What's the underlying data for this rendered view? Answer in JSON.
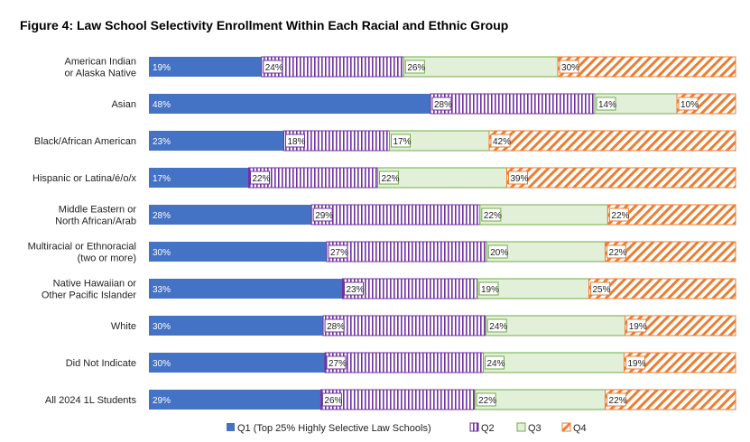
{
  "chart_data": {
    "type": "bar",
    "orientation": "horizontal",
    "stacked": "percent",
    "title": "Figure 4: Law School Selectivity Enrollment Within Each Racial and Ethnic Group",
    "categories": [
      [
        "American Indian",
        "or Alaska Native"
      ],
      [
        "Asian"
      ],
      [
        "Black/African American"
      ],
      [
        "Hispanic or Latina/é/o/x"
      ],
      [
        "Middle Eastern or",
        "North African/Arab"
      ],
      [
        "Multiracial or Ethnoracial",
        "(two or more)"
      ],
      [
        "Native Hawaiian or",
        "Other Pacific Islander"
      ],
      [
        "White"
      ],
      [
        "Did Not Indicate"
      ],
      [
        "All 2024 1L Students"
      ]
    ],
    "series": [
      {
        "name": "Q1 (Top 25% Highly Selective Law Schools)",
        "color": "#4472c4",
        "pattern": "solid",
        "values": [
          19,
          48,
          23,
          17,
          28,
          30,
          33,
          30,
          30,
          29
        ]
      },
      {
        "name": "Q2",
        "color": "#7030a0",
        "pattern": "vertical-stripes",
        "values": [
          24,
          28,
          18,
          22,
          29,
          27,
          23,
          28,
          27,
          26
        ]
      },
      {
        "name": "Q3",
        "color": "#70ad47",
        "pattern": "light-fill",
        "values": [
          26,
          14,
          17,
          22,
          22,
          20,
          19,
          24,
          24,
          22
        ]
      },
      {
        "name": "Q4",
        "color": "#ed7d31",
        "pattern": "diagonal-stripes",
        "values": [
          30,
          10,
          42,
          39,
          22,
          22,
          25,
          19,
          19,
          22
        ]
      }
    ],
    "value_format": "{v}%",
    "legend": "bottom",
    "grid": false
  }
}
